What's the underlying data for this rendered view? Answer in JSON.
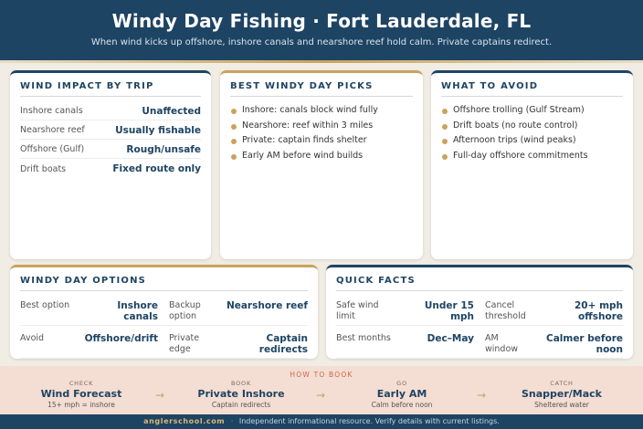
{
  "header": {
    "title": "Windy Day Fishing · Fort Lauderdale, FL",
    "subtitle": "When wind kicks up offshore, inshore canals and nearshore reef hold calm. Private captains redirect."
  },
  "wind_impact": {
    "title": "WIND IMPACT BY TRIP",
    "rows": [
      {
        "label": "Inshore canals",
        "value": "Unaffected"
      },
      {
        "label": "Nearshore reef",
        "value": "Usually fishable"
      },
      {
        "label": "Offshore (Gulf)",
        "value": "Rough/unsafe"
      },
      {
        "label": "Drift boats",
        "value": "Fixed route only"
      }
    ]
  },
  "best_picks": {
    "title": "BEST WINDY DAY PICKS",
    "items": [
      "Inshore: canals block wind fully",
      "Nearshore: reef within 3 miles",
      "Private: captain finds shelter",
      "Early AM before wind builds"
    ]
  },
  "avoid": {
    "title": "WHAT TO AVOID",
    "items": [
      "Offshore trolling (Gulf Stream)",
      "Drift boats (no route control)",
      "Afternoon trips (wind peaks)",
      "Full-day offshore commitments"
    ]
  },
  "options": {
    "title": "WINDY DAY OPTIONS",
    "rows": [
      [
        {
          "label": "Best option",
          "value": "Inshore canals"
        },
        {
          "label": "Backup option",
          "value": "Nearshore reef"
        }
      ],
      [
        {
          "label": "Avoid",
          "value": "Offshore/drift"
        },
        {
          "label": "Private edge",
          "value": "Captain redirects"
        }
      ]
    ]
  },
  "quick_facts": {
    "title": "QUICK FACTS",
    "rows": [
      [
        {
          "label": "Safe wind limit",
          "value": "Under 15 mph"
        },
        {
          "label": "Cancel threshold",
          "value": "20+ mph offshore"
        }
      ],
      [
        {
          "label": "Best months",
          "value": "Dec–May"
        },
        {
          "label": "AM window",
          "value": "Calmer before noon"
        }
      ]
    ]
  },
  "how_to_book": {
    "label": "HOW TO BOOK",
    "steps": [
      {
        "label": "CHECK",
        "head": "Wind Forecast",
        "sub": "15+ mph = inshore"
      },
      {
        "label": "BOOK",
        "head": "Private Inshore",
        "sub": "Captain redirects"
      },
      {
        "label": "GO",
        "head": "Early AM",
        "sub": "Calm before noon"
      },
      {
        "label": "CATCH",
        "head": "Snapper/Mack",
        "sub": "Sheltered water"
      }
    ],
    "arrow": "→"
  },
  "footer": {
    "brand": "anglerschool.com",
    "separator": "·",
    "note": "Independent informational resource. Verify details with current listings."
  },
  "colors": {
    "navy": "#1e4463",
    "gold": "#c9a35e",
    "cream": "#f2ede4",
    "peach": "#f4ddd2"
  }
}
